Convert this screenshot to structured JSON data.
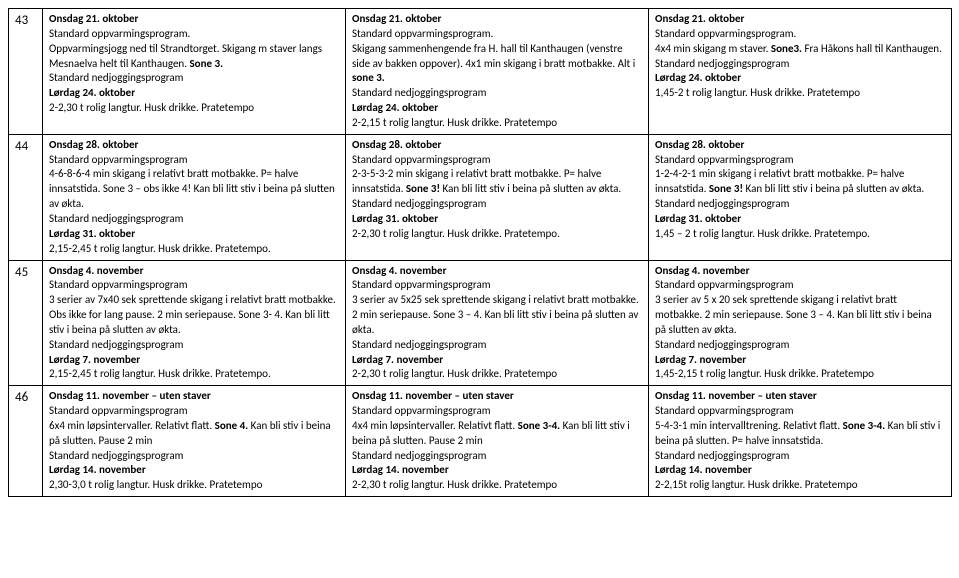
{
  "rows": [
    {
      "num": "43",
      "c1": {
        "dayA": "Onsdag 21. oktober",
        "prog": "Standard oppvarmingsprogram.",
        "body": "Oppvarmingsjogg ned til Strandtorget. Skigang m staver langs Mesnaelva helt til Kanthaugen. ",
        "zone": "Sone 3.",
        "jog": "Standard nedjoggingsprogram",
        "dayB": "Lørdag 24. oktober",
        "sat": "2-2,30 t rolig langtur. Husk drikke. Pratetempo"
      },
      "c2": {
        "dayA": "Onsdag 21. oktober",
        "prog": "Standard oppvarmingsprogram.",
        "body": "Skigang sammenhengende fra H. hall til Kanthaugen (venstre side av bakken oppover). 4x1 min skigang i bratt motbakke. Alt i ",
        "zone": "sone 3.",
        "jog": "Standard nedjoggingsprogram",
        "dayB": "Lørdag 24. oktober",
        "sat": "2-2,15 t rolig langtur. Husk drikke. Pratetempo"
      },
      "c3": {
        "dayA": "Onsdag 21. oktober",
        "prog": "Standard oppvarmingsprogram.",
        "body": "4x4 min skigang m staver. ",
        "zone": "Sone3.",
        "body2": " Fra Håkons hall til Kanthaugen.",
        "jog": "Standard nedjoggingsprogram",
        "dayB": "Lørdag 24. oktober",
        "sat": "1,45-2 t rolig langtur. Husk drikke. Pratetempo"
      }
    },
    {
      "num": "44",
      "c1": {
        "dayA": "Onsdag 28. oktober",
        "prog": "Standard oppvarmingsprogram",
        "body": "4-6-8-6-4 min skigang i relativt bratt motbakke. P= halve innsatstida. Sone 3 – obs ikke 4! Kan bli litt stiv i beina på slutten av økta.",
        "jog": "Standard nedjoggingsprogram",
        "dayB": "Lørdag 31. oktober",
        "sat": "2,15-2,45 t rolig langtur. Husk drikke. Pratetempo."
      },
      "c2": {
        "dayA": "Onsdag 28. oktober",
        "prog": "Standard oppvarmingsprogram",
        "body": "2-3-5-3-2 min skigang i relativt bratt motbakke. P= halve innsatstida. ",
        "zone": "Sone 3!",
        "body2": "  Kan bli litt stiv i beina på slutten av økta.",
        "jog": "Standard nedjoggingsprogram",
        "dayB": "Lørdag 31. oktober",
        "sat": "2-2,30 t rolig langtur. Husk drikke. Pratetempo."
      },
      "c3": {
        "dayA": "Onsdag 28. oktober",
        "prog": "Standard oppvarmingsprogram",
        "body": "1-2-4-2-1 min skigang i relativt bratt motbakke. P= halve innsatstida. ",
        "zone": "Sone 3!",
        "body2": "  Kan bli litt stiv i beina på slutten av økta.",
        "jog": "Standard nedjoggingsprogram",
        "dayB": "Lørdag 31. oktober",
        "sat": "1,45 – 2 t rolig langtur. Husk drikke. Pratetempo."
      }
    },
    {
      "num": "45",
      "c1": {
        "dayA": "Onsdag 4. november",
        "prog": "Standard oppvarmingsprogram",
        "body": "3 serier av 7x40 sek sprettende skigang i relativt bratt motbakke. Obs ikke for lang pause. 2 min seriepause. Sone 3- 4. Kan bli litt stiv i beina på slutten av økta.",
        "jog": "Standard nedjoggingsprogram",
        "dayB": "Lørdag 7. november",
        "sat": "2,15-2,45 t rolig langtur. Husk drikke. Pratetempo."
      },
      "c2": {
        "dayA": "Onsdag 4. november",
        "prog": "Standard oppvarmingsprogram",
        "body": "3 serier av 5x25 sek sprettende skigang i relativt bratt motbakke. 2 min seriepause. Sone 3 – 4. Kan bli litt stiv i beina på slutten av økta.",
        "jog": "Standard nedjoggingsprogram",
        "dayB": "Lørdag 7. november",
        "sat": "2-2,30 t rolig langtur. Husk drikke. Pratetempo"
      },
      "c3": {
        "dayA": "Onsdag 4. november",
        "prog": "Standard oppvarmingsprogram",
        "body": "3 serier av 5 x 20 sek sprettende skigang i relativt bratt motbakke. 2 min seriepause. Sone 3 – 4. Kan bli litt stiv i beina på slutten av økta.",
        "jog": "Standard nedjoggingsprogram",
        "dayB": "Lørdag 7. november",
        "sat": "1,45-2,15 t rolig langtur. Husk drikke. Pratetempo"
      }
    },
    {
      "num": "46",
      "c1": {
        "dayA": "Onsdag 11. november – uten staver",
        "prog": "Standard oppvarmingsprogram",
        "body": "6x4 min løpsintervaller. Relativt flatt. ",
        "zone": "Sone 4.",
        "body2": " Kan bli stiv i beina på slutten. Pause 2 min",
        "jog": "Standard nedjoggingsprogram",
        "dayB": "Lørdag 14. november",
        "sat": "2,30-3,0 t rolig langtur. Husk drikke. Pratetempo"
      },
      "c2": {
        "dayA": "Onsdag 11. november – uten staver",
        "prog": "Standard oppvarmingsprogram",
        "body": "4x4 min løpsintervaller. Relativt flatt. ",
        "zone": "Sone 3-4.",
        "body2": " Kan bli litt stiv i beina på slutten. Pause 2 min",
        "jog": "Standard nedjoggingsprogram",
        "dayB": "Lørdag 14. november",
        "sat": "2-2,30 t rolig langtur. Husk drikke. Pratetempo"
      },
      "c3": {
        "dayA": "Onsdag 11. november – uten staver",
        "prog": "Standard oppvarmingsprogram",
        "body": "5-4-3-1 min intervalltrening. Relativt flatt. ",
        "zone": "Sone 3-4.",
        "body2": " Kan bli stiv i beina på slutten. P= halve innsatstida.",
        "jog": "Standard nedjoggingsprogram",
        "dayB": "Lørdag 14. november",
        "sat": "2-2,15t rolig langtur. Husk drikke. Pratetempo"
      }
    }
  ]
}
